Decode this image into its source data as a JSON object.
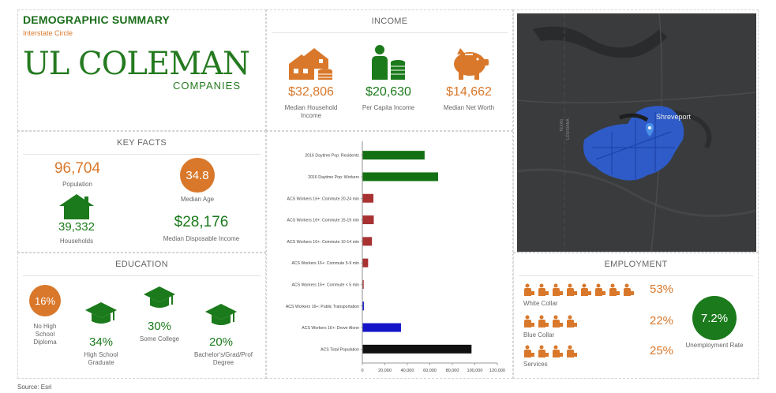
{
  "header": {
    "title": "DEMOGRAPHIC SUMMARY",
    "subtitle": "Interstate Circle",
    "logo_text_main": "UL COLEMAN",
    "logo_text_sub": "COMPANIES"
  },
  "income": {
    "section_title": "INCOME",
    "items": [
      {
        "value": "$32,806",
        "label": "Median Household Income",
        "icon": "house-coins-icon"
      },
      {
        "value": "$20,630",
        "label": "Per Capita Income",
        "icon": "person-coins-icon"
      },
      {
        "value": "$14,662",
        "label": "Median Net Worth",
        "icon": "piggy-bank-icon"
      }
    ]
  },
  "key_facts": {
    "section_title": "KEY FACTS",
    "population_value": "96,704",
    "population_label": "Population",
    "median_age_value": "34.8",
    "median_age_label": "Median Age",
    "households_value": "39,332",
    "households_label": "Households",
    "disposable_income_value": "$28,176",
    "disposable_income_label": "Median Disposable Income"
  },
  "education": {
    "section_title": "EDUCATION",
    "no_hs_value": "16%",
    "no_hs_label": "No High School Diploma",
    "hs_value": "34%",
    "hs_label": "High School Graduate",
    "some_college_value": "30%",
    "some_college_label": "Some College",
    "bachelor_value": "20%",
    "bachelor_label": "Bachelor's/Grad/Prof Degree"
  },
  "employment": {
    "section_title": "EMPLOYMENT",
    "rows": [
      {
        "label": "White Collar",
        "value": "53%",
        "icon_count": 8
      },
      {
        "label": "Blue Collar",
        "value": "22%",
        "icon_count": 4
      },
      {
        "label": "Services",
        "value": "25%",
        "icon_count": 4
      }
    ],
    "unemployment_value": "7.2%",
    "unemployment_label": "Unemployment Rate"
  },
  "map": {
    "city_label": "Shreveport",
    "state_label_1": "TEXAS",
    "state_label_2": "LOUISIANA"
  },
  "footer": {
    "source": "Source: Esri"
  },
  "colors": {
    "accent_orange": "#d9782b",
    "accent_green": "#1b7a1b",
    "bar_green": "#127012",
    "bar_red": "#a83232",
    "bar_blue": "#1414c8",
    "bar_black": "#111111"
  },
  "chart_data": {
    "type": "bar",
    "orientation": "horizontal",
    "categories": [
      "2016 Daytime Pop: Residents",
      "2016 Daytime Pop: Workers",
      "ACS Workers 16+: Commute 20-24 min",
      "ACS Workers 16+: Commute 15-19 min",
      "ACS Workers 16+: Commute 10-14 min",
      "ACS Workers 16+: Commute 5-9 min",
      "ACS Workers 16+: Commute < 5 min",
      "ACS Workers 16+: Public Transportation",
      "ACS Workers 16+: Drove Alone",
      "ACS Total Population"
    ],
    "values": [
      55000,
      67000,
      9500,
      9800,
      8200,
      4800,
      800,
      1000,
      34000,
      96704
    ],
    "bar_colors": [
      "#127012",
      "#127012",
      "#a83232",
      "#a83232",
      "#a83232",
      "#a83232",
      "#a83232",
      "#1414c8",
      "#1414c8",
      "#111111"
    ],
    "xlim": [
      0,
      120000
    ],
    "xticks": [
      "0",
      "20,000",
      "40,000",
      "60,000",
      "80,000",
      "100,000",
      "120,000"
    ],
    "grid": false
  }
}
